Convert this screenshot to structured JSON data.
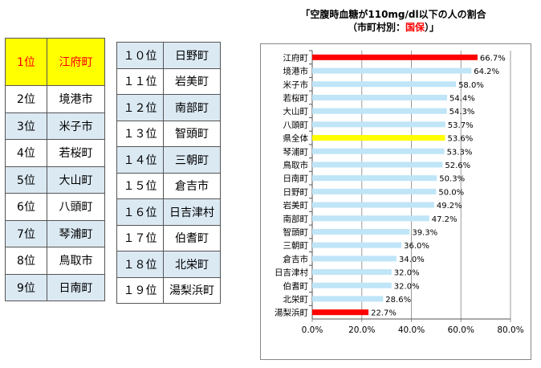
{
  "ranking_left": [
    {
      "rank": "1位",
      "name": "江府町"
    },
    {
      "rank": "2位",
      "name": "境港市"
    },
    {
      "rank": "3位",
      "name": "米子市"
    },
    {
      "rank": "4位",
      "name": "若桜町"
    },
    {
      "rank": "5位",
      "name": "大山町"
    },
    {
      "rank": "6位",
      "name": "八頭町"
    },
    {
      "rank": "7位",
      "name": "琴浦町"
    },
    {
      "rank": "8位",
      "name": "鳥取市"
    },
    {
      "rank": "9位",
      "name": "日南町"
    }
  ],
  "ranking_right": [
    {
      "rank": "１０位",
      "name": "日野町"
    },
    {
      "rank": "１１位",
      "name": "岩美町"
    },
    {
      "rank": "１２位",
      "name": "南部町"
    },
    {
      "rank": "１３位",
      "name": "智頭町"
    },
    {
      "rank": "１４位",
      "name": "三朝町"
    },
    {
      "rank": "１５位",
      "name": "倉吉市"
    },
    {
      "rank": "１６位",
      "name": "日吉津村"
    },
    {
      "rank": "１７位",
      "name": "伯耆町"
    },
    {
      "rank": "１８位",
      "name": "北栄町"
    },
    {
      "rank": "１９位",
      "name": "湯梨浜町"
    }
  ],
  "colors": {
    "highlight_red": "#ff0000",
    "highlight_yellow": "#ffff00",
    "bar_default": "#bfe5f7",
    "row_shade": "#dbe9f3"
  },
  "chart_data": {
    "type": "bar",
    "orientation": "horizontal",
    "title_line1": "「空腹時血糖が110mg/dl以下の人の割合",
    "title_line2_prefix": "（市町村別：",
    "title_line2_red": "国保",
    "title_line2_suffix": "）」",
    "categories": [
      "江府町",
      "境港市",
      "米子市",
      "若桜町",
      "大山町",
      "八頭町",
      "県全体",
      "琴浦町",
      "鳥取市",
      "日南町",
      "日野町",
      "岩美町",
      "南部町",
      "智頭町",
      "三朝町",
      "倉吉市",
      "日吉津村",
      "伯耆町",
      "北栄町",
      "湯梨浜町"
    ],
    "values": [
      66.7,
      64.2,
      58.0,
      54.4,
      54.3,
      53.7,
      53.6,
      53.3,
      52.6,
      50.3,
      50.0,
      49.2,
      47.2,
      39.3,
      36.0,
      34.0,
      32.0,
      32.0,
      28.6,
      22.7
    ],
    "value_labels": [
      "66.7%",
      "64.2%",
      "58.0%",
      "54.4%",
      "54.3%",
      "53.7%",
      "53.6%",
      "53.3%",
      "52.6%",
      "50.3%",
      "50.0%",
      "49.2%",
      "47.2%",
      "39.3%",
      "36.0%",
      "34.0%",
      "32.0%",
      "32.0%",
      "28.6%",
      "22.7%"
    ],
    "bar_colors": [
      "#ff0000",
      "#bfe5f7",
      "#bfe5f7",
      "#bfe5f7",
      "#bfe5f7",
      "#bfe5f7",
      "#ffff00",
      "#bfe5f7",
      "#bfe5f7",
      "#bfe5f7",
      "#bfe5f7",
      "#bfe5f7",
      "#bfe5f7",
      "#bfe5f7",
      "#bfe5f7",
      "#bfe5f7",
      "#bfe5f7",
      "#bfe5f7",
      "#bfe5f7",
      "#ff0000"
    ],
    "xlim": [
      0,
      80
    ],
    "x_ticks": [
      0,
      20,
      40,
      60,
      80
    ],
    "x_tick_labels": [
      "0.0%",
      "20.0%",
      "40.0%",
      "60.0%",
      "80.0%"
    ],
    "grid": true
  }
}
